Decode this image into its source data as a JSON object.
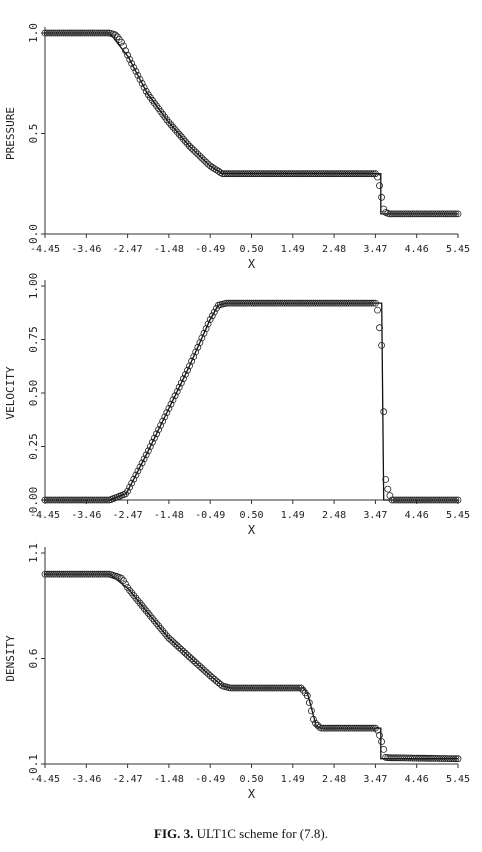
{
  "caption": {
    "label": "FIG. 3.",
    "text": "ULT1C scheme for (7.8)."
  },
  "chart_data": [
    {
      "type": "line",
      "ylabel": "PRESSURE",
      "xlabel": "X",
      "ylim": [
        0.0,
        1.0
      ],
      "xlim": [
        -4.45,
        5.45
      ],
      "yticks": [
        0.0,
        0.5,
        1.0
      ],
      "ytick_labels": [
        "0.0",
        "0.5",
        "1.0"
      ],
      "xticks": [
        -4.45,
        -3.46,
        -2.47,
        -1.48,
        -0.49,
        0.5,
        1.49,
        2.48,
        3.47,
        4.46,
        5.45
      ],
      "xtick_labels": [
        "-4.45",
        "-3.46",
        "-2.47",
        "-1.48",
        "-0.49",
        "0.50",
        "1.49",
        "2.48",
        "3.47",
        "4.46",
        "5.45"
      ],
      "series": [
        {
          "style": "line",
          "x": [
            -4.45,
            -2.9,
            -2.45,
            -2.0,
            -1.5,
            -1.0,
            -0.5,
            -0.2,
            0.0,
            3.5,
            3.6,
            3.6,
            5.45
          ],
          "y": [
            1.0,
            1.0,
            0.88,
            0.7,
            0.56,
            0.44,
            0.34,
            0.3,
            0.3,
            0.3,
            0.3,
            0.1,
            0.1
          ]
        },
        {
          "style": "markers",
          "x": [
            -4.45,
            -2.9,
            -2.75,
            -2.6,
            -2.45,
            -2.0,
            -1.5,
            -1.0,
            -0.5,
            -0.2,
            0.0,
            3.5,
            3.57,
            3.68,
            3.8,
            5.45
          ],
          "y": [
            1.0,
            1.0,
            0.99,
            0.95,
            0.88,
            0.7,
            0.56,
            0.44,
            0.34,
            0.3,
            0.3,
            0.3,
            0.24,
            0.11,
            0.1,
            0.1
          ]
        }
      ]
    },
    {
      "type": "line",
      "ylabel": "VELOCITY",
      "xlabel": "X",
      "ylim": [
        0.0,
        1.0
      ],
      "xlim": [
        -4.45,
        5.45
      ],
      "yticks": [
        0.0,
        0.25,
        0.5,
        0.75,
        1.0
      ],
      "ytick_labels": [
        "0.00",
        "0.25",
        "0.50",
        "0.75",
        "1.00"
      ],
      "xticks": [
        -4.45,
        -3.46,
        -2.47,
        -1.48,
        -0.49,
        0.5,
        1.49,
        2.48,
        3.47,
        4.46,
        5.45
      ],
      "xtick_labels": [
        "-4.45",
        "-3.46",
        "-2.47",
        "-1.48",
        "-0.49",
        "0.50",
        "1.49",
        "2.48",
        "3.47",
        "4.46",
        "5.45"
      ],
      "series": [
        {
          "style": "line",
          "x": [
            -4.45,
            -2.9,
            -2.5,
            -2.0,
            -1.5,
            -1.0,
            -0.5,
            -0.3,
            -0.1,
            3.55,
            3.62,
            3.67,
            5.45
          ],
          "y": [
            0.0,
            0.0,
            0.03,
            0.22,
            0.42,
            0.62,
            0.84,
            0.91,
            0.92,
            0.92,
            0.92,
            0.0,
            0.0
          ]
        },
        {
          "style": "markers",
          "x": [
            -4.45,
            -2.9,
            -2.5,
            -2.0,
            -1.5,
            -1.0,
            -0.5,
            -0.3,
            -0.1,
            3.5,
            3.62,
            3.72,
            3.85,
            5.45
          ],
          "y": [
            0.0,
            0.0,
            0.03,
            0.22,
            0.42,
            0.62,
            0.84,
            0.91,
            0.92,
            0.92,
            0.72,
            0.08,
            0.0,
            0.0
          ]
        }
      ]
    },
    {
      "type": "line",
      "ylabel": "DENSITY",
      "xlabel": "X",
      "ylim": [
        0.1,
        1.1
      ],
      "xlim": [
        -4.45,
        5.45
      ],
      "yticks": [
        0.1,
        0.6,
        1.1
      ],
      "ytick_labels": [
        "0.1",
        "0.6",
        "1.1"
      ],
      "xticks": [
        -4.45,
        -3.46,
        -2.47,
        -1.48,
        -0.49,
        0.5,
        1.49,
        2.48,
        3.47,
        4.46,
        5.45
      ],
      "xtick_labels": [
        "-4.45",
        "-3.46",
        "-2.47",
        "-1.48",
        "-0.49",
        "0.50",
        "1.49",
        "2.48",
        "3.47",
        "4.46",
        "5.45"
      ],
      "series": [
        {
          "style": "line",
          "x": [
            -4.45,
            -2.9,
            -2.45,
            -2.0,
            -1.5,
            -1.0,
            -0.5,
            -0.2,
            0.0,
            1.75,
            1.85,
            2.05,
            2.15,
            3.5,
            3.6,
            3.6,
            5.45
          ],
          "y": [
            1.0,
            1.0,
            0.93,
            0.82,
            0.7,
            0.61,
            0.52,
            0.47,
            0.46,
            0.46,
            0.43,
            0.28,
            0.27,
            0.27,
            0.27,
            0.125,
            0.125
          ]
        },
        {
          "style": "markers",
          "x": [
            -4.45,
            -2.9,
            -2.6,
            -2.45,
            -2.0,
            -1.5,
            -1.0,
            -0.5,
            -0.2,
            0.0,
            1.7,
            1.85,
            2.0,
            2.15,
            3.5,
            3.6,
            3.72,
            5.45
          ],
          "y": [
            1.0,
            1.0,
            0.98,
            0.93,
            0.82,
            0.7,
            0.61,
            0.52,
            0.47,
            0.46,
            0.46,
            0.42,
            0.3,
            0.27,
            0.27,
            0.22,
            0.13,
            0.125
          ]
        }
      ]
    }
  ]
}
